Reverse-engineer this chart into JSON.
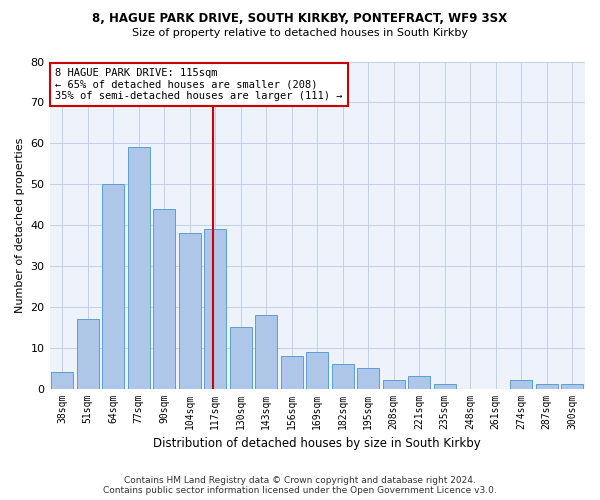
{
  "title1": "8, HAGUE PARK DRIVE, SOUTH KIRKBY, PONTEFRACT, WF9 3SX",
  "title2": "Size of property relative to detached houses in South Kirkby",
  "xlabel": "Distribution of detached houses by size in South Kirkby",
  "ylabel": "Number of detached properties",
  "categories": [
    "38sqm",
    "51sqm",
    "64sqm",
    "77sqm",
    "90sqm",
    "104sqm",
    "117sqm",
    "130sqm",
    "143sqm",
    "156sqm",
    "169sqm",
    "182sqm",
    "195sqm",
    "208sqm",
    "221sqm",
    "235sqm",
    "248sqm",
    "261sqm",
    "274sqm",
    "287sqm",
    "300sqm"
  ],
  "values": [
    4,
    17,
    50,
    59,
    44,
    38,
    39,
    15,
    18,
    8,
    9,
    6,
    5,
    2,
    3,
    1,
    0,
    0,
    2,
    1,
    1
  ],
  "bar_color": "#aec6e8",
  "bar_edge_color": "#5a9fd4",
  "vline_index": 6,
  "vline_color": "#cc0000",
  "annotation_line1": "8 HAGUE PARK DRIVE: 115sqm",
  "annotation_line2": "← 65% of detached houses are smaller (208)",
  "annotation_line3": "35% of semi-detached houses are larger (111) →",
  "annotation_box_color": "#cc0000",
  "ylim": [
    0,
    80
  ],
  "yticks": [
    0,
    10,
    20,
    30,
    40,
    50,
    60,
    70,
    80
  ],
  "grid_color": "#c0d0e8",
  "bg_color": "#eef3fb",
  "footer1": "Contains HM Land Registry data © Crown copyright and database right 2024.",
  "footer2": "Contains public sector information licensed under the Open Government Licence v3.0."
}
